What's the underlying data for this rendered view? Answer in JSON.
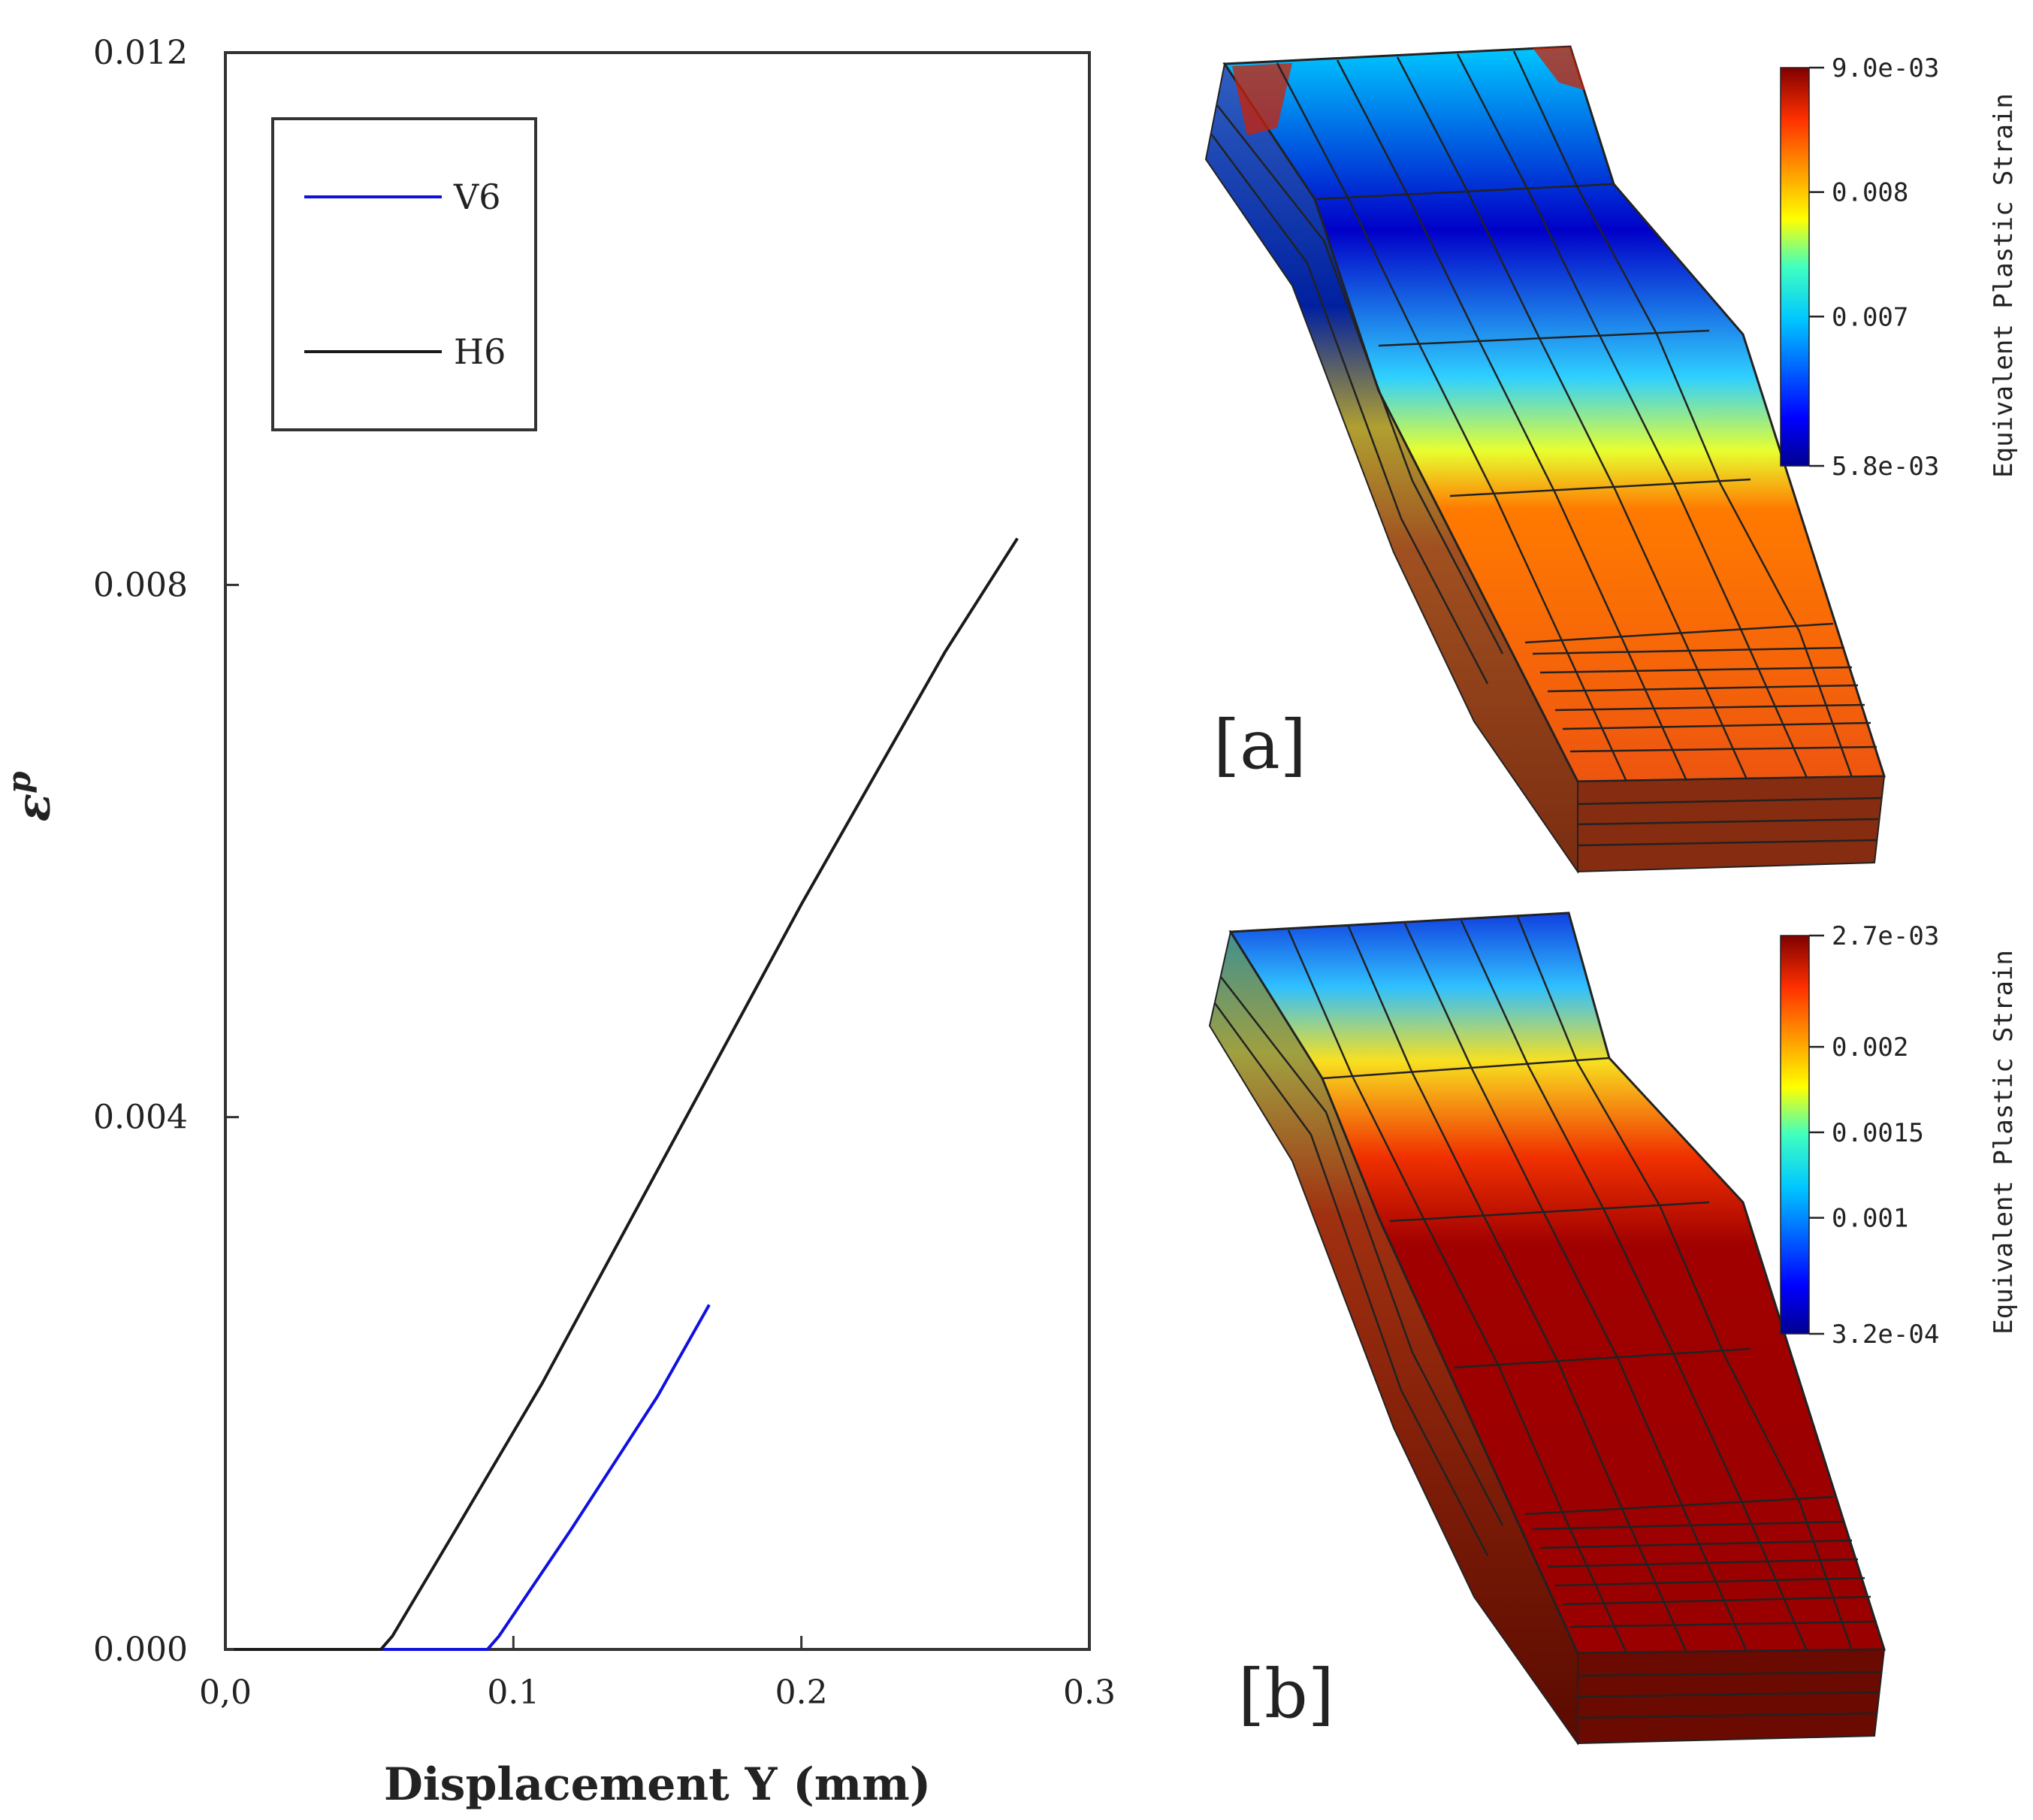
{
  "chart_data": {
    "type": "line",
    "xlabel": "Displacement Y (mm)",
    "ylabel": "ε",
    "ylabel_sup": "p",
    "xlim": [
      0,
      0.3
    ],
    "ylim": [
      0,
      0.012
    ],
    "x_ticks": [
      0,
      0.1,
      0.2,
      0.3
    ],
    "x_tick_labels": [
      "0,0",
      "0.1",
      "0.2",
      "0.3"
    ],
    "y_ticks": [
      0,
      0.004,
      0.008,
      0.012
    ],
    "y_tick_labels": [
      "0.000",
      "0.004",
      "0.008",
      "0.012"
    ],
    "legend_position": "top-left",
    "series": [
      {
        "name": "V6",
        "color": "#1010e0",
        "x": [
          0.003,
          0.05,
          0.091,
          0.095,
          0.12,
          0.15,
          0.168
        ],
        "y": [
          0,
          0,
          0,
          0.0001,
          0.0009,
          0.0019,
          0.00259
        ]
      },
      {
        "name": "H6",
        "color": "#1a1a1a",
        "x": [
          0.003,
          0.03,
          0.054,
          0.058,
          0.08,
          0.11,
          0.15,
          0.2,
          0.25,
          0.275
        ],
        "y": [
          0,
          0,
          0,
          0.0001,
          0.0009,
          0.002,
          0.0036,
          0.0056,
          0.0075,
          0.00835
        ]
      }
    ]
  },
  "panels": [
    {
      "label": "[a]",
      "colorbar_title": "Equivalent Plastic Strain",
      "colorbar_ticks": [
        "9.0e-03",
        "0.008",
        "0.007",
        "5.8e-03"
      ],
      "tick_fractions": [
        0,
        0.3125,
        0.625,
        1
      ]
    },
    {
      "label": "[b]",
      "colorbar_title": "Equivalent Plastic Strain",
      "colorbar_ticks": [
        "2.7e-03",
        "0.002",
        "0.0015",
        "0.001",
        "3.2e-04"
      ],
      "tick_fractions": [
        0,
        0.2794,
        0.4941,
        0.7088,
        1
      ]
    }
  ]
}
